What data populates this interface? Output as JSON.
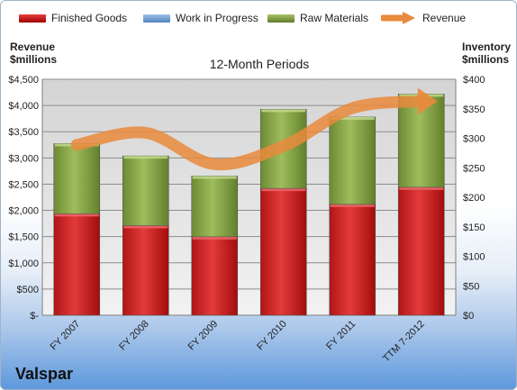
{
  "chart_data": {
    "type": "bar",
    "stacked": true,
    "title": "12-Month Periods",
    "company": "Valspar",
    "categories": [
      "FY 2007",
      "FY 2008",
      "FY 2009",
      "FY 2010",
      "FY 2011",
      "TTM 7-2012"
    ],
    "left_axis": {
      "label": "Revenue\n$millions",
      "ylim": [
        0,
        4500
      ],
      "ticks": [
        "$-",
        "$500",
        "$1,000",
        "$1,500",
        "$2,000",
        "$2,500",
        "$3,000",
        "$3,500",
        "$4,000",
        "$4,500"
      ],
      "tick_values": [
        0,
        500,
        1000,
        1500,
        2000,
        2500,
        3000,
        3500,
        4000,
        4500
      ]
    },
    "right_axis": {
      "label": "Inventory\n$millions",
      "ylim": [
        0,
        400
      ],
      "ticks": [
        "$0",
        "$50",
        "$100",
        "$150",
        "$200",
        "$250",
        "$300",
        "$350",
        "$400"
      ],
      "tick_values": [
        0,
        50,
        100,
        150,
        200,
        250,
        300,
        350,
        400
      ]
    },
    "series": [
      {
        "name": "Finished Goods",
        "axis": "right",
        "color": "#c00000",
        "values": [
          172,
          152,
          133,
          215,
          188,
          217
        ]
      },
      {
        "name": "Work in Progress",
        "axis": "right",
        "color": "#4f81bd",
        "values": [
          0,
          0,
          0,
          0,
          0,
          0
        ]
      },
      {
        "name": "Raw Materials",
        "axis": "right",
        "color": "#77933c",
        "values": [
          119,
          118,
          103,
          134,
          148,
          158
        ]
      },
      {
        "name": "Revenue",
        "axis": "left",
        "type": "line",
        "color": "#e46c0a",
        "values": [
          3250,
          3480,
          2880,
          3225,
          3950,
          4080
        ]
      }
    ],
    "grid": true,
    "legend": "top"
  }
}
